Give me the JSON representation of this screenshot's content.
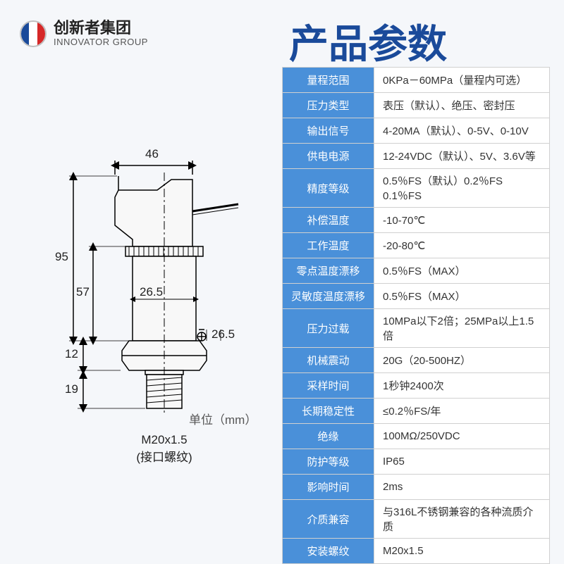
{
  "logo": {
    "cn": "创新者集团",
    "en": "INNOVATOR GROUP"
  },
  "title": "产品参数",
  "unit_label": "单位（mm）",
  "thread": {
    "spec": "M20x1.5",
    "note": "(接口螺纹)"
  },
  "dimensions": {
    "top_width": "46",
    "side_95": "95",
    "side_57": "57",
    "side_12": "12",
    "side_19": "19",
    "mid_26_5_a": "26.5",
    "mid_26_5_b": "26.5"
  },
  "specs": [
    {
      "label": "量程范围",
      "value": "0KPa－60MPa（量程内可选）"
    },
    {
      "label": "压力类型",
      "value": "表压（默认）、绝压、密封压"
    },
    {
      "label": "输出信号",
      "value": "4-20MA（默认）、0-5V、0-10V"
    },
    {
      "label": "供电电源",
      "value": "12-24VDC（默认）、5V、3.6V等"
    },
    {
      "label": "精度等级",
      "value": "0.5％FS（默认）0.2％FS 0.1％FS"
    },
    {
      "label": "补偿温度",
      "value": "-10-70℃"
    },
    {
      "label": "工作温度",
      "value": "-20-80℃"
    },
    {
      "label": "零点温度漂移",
      "value": "0.5％FS（MAX）"
    },
    {
      "label": "灵敏度温度漂移",
      "value": "0.5％FS（MAX）"
    },
    {
      "label": "压力过载",
      "value": "10MPa以下2倍；25MPa以上1.5倍"
    },
    {
      "label": "机械震动",
      "value": "20G（20-500HZ）"
    },
    {
      "label": "采样时间",
      "value": "1秒钟2400次"
    },
    {
      "label": "长期稳定性",
      "value": "≤0.2％FS/年"
    },
    {
      "label": "绝缘",
      "value": "100MΩ/250VDC"
    },
    {
      "label": "防护等级",
      "value": "IP65"
    },
    {
      "label": "影响时间",
      "value": "2ms"
    },
    {
      "label": "介质兼容",
      "value": "与316L不锈钢兼容的各种流质介质"
    },
    {
      "label": "安装螺纹",
      "value": "M20x1.5"
    }
  ],
  "colors": {
    "primary": "#1a4a9a",
    "table_header": "#4a90d9",
    "background": "#f5f7fa",
    "border": "#d0d0d0",
    "text": "#222"
  }
}
